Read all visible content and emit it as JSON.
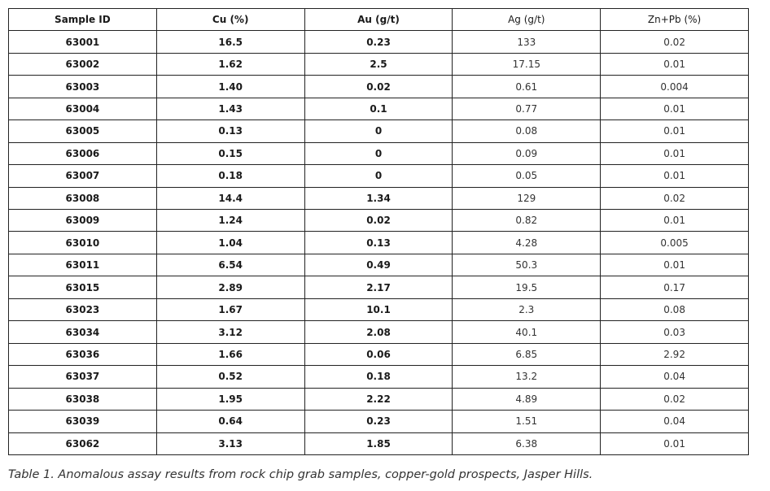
{
  "table": {
    "headers": [
      "Sample ID",
      "Cu (%)",
      "Au (g/t)",
      "Ag (g/t)",
      "Zn+Pb (%)"
    ],
    "rows": [
      [
        "63001",
        "16.5",
        "0.23",
        "133",
        "0.02"
      ],
      [
        "63002",
        "1.62",
        "2.5",
        "17.15",
        "0.01"
      ],
      [
        "63003",
        "1.40",
        "0.02",
        "0.61",
        "0.004"
      ],
      [
        "63004",
        "1.43",
        "0.1",
        "0.77",
        "0.01"
      ],
      [
        "63005",
        "0.13",
        "0",
        "0.08",
        "0.01"
      ],
      [
        "63006",
        "0.15",
        "0",
        "0.09",
        "0.01"
      ],
      [
        "63007",
        "0.18",
        "0",
        "0.05",
        "0.01"
      ],
      [
        "63008",
        "14.4",
        "1.34",
        "129",
        "0.02"
      ],
      [
        "63009",
        "1.24",
        "0.02",
        "0.82",
        "0.01"
      ],
      [
        "63010",
        "1.04",
        "0.13",
        "4.28",
        "0.005"
      ],
      [
        "63011",
        "6.54",
        "0.49",
        "50.3",
        "0.01"
      ],
      [
        "63015",
        "2.89",
        "2.17",
        "19.5",
        "0.17"
      ],
      [
        "63023",
        "1.67",
        "10.1",
        "2.3",
        "0.08"
      ],
      [
        "63034",
        "3.12",
        "2.08",
        "40.1",
        "0.03"
      ],
      [
        "63036",
        "1.66",
        "0.06",
        "6.85",
        "2.92"
      ],
      [
        "63037",
        "0.52",
        "0.18",
        "13.2",
        "0.04"
      ],
      [
        "63038",
        "1.95",
        "2.22",
        "4.89",
        "0.02"
      ],
      [
        "63039",
        "0.64",
        "0.23",
        "1.51",
        "0.04"
      ],
      [
        "63062",
        "3.13",
        "1.85",
        "6.38",
        "0.01"
      ]
    ]
  },
  "caption": "Table 1. Anomalous assay results from rock chip grab samples, copper-gold prospects, Jasper Hills."
}
